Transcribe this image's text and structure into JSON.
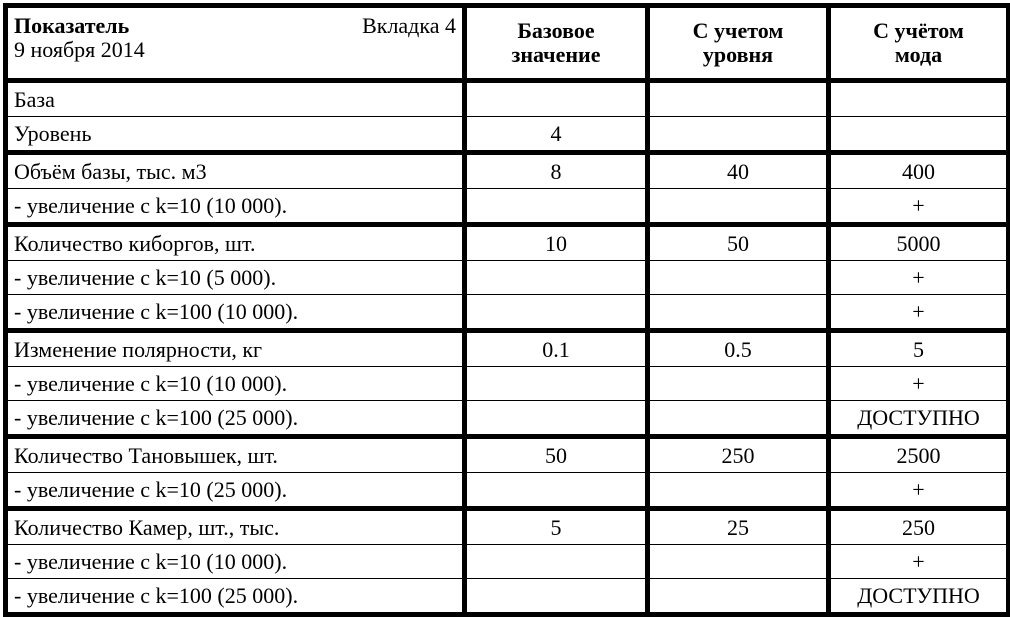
{
  "header": {
    "indicator": "Показатель",
    "tab": "Вкладка 4",
    "date": "9 ноября 2014",
    "col_base": "Базовое значение",
    "col_level": "С учетом уровня",
    "col_mod": "С учётом мода"
  },
  "groups": [
    {
      "rows": [
        {
          "label": "База",
          "base": "",
          "level": "",
          "mod": ""
        },
        {
          "label": "Уровень",
          "base": "4",
          "level": "",
          "mod": ""
        }
      ]
    },
    {
      "rows": [
        {
          "label": "Объём базы, тыс. м3",
          "base": "8",
          "level": "40",
          "mod": "400"
        },
        {
          "label": "- увеличение с k=10 (10 000).",
          "base": "",
          "level": "",
          "mod": "+"
        }
      ]
    },
    {
      "rows": [
        {
          "label": "Количество киборгов, шт.",
          "base": "10",
          "level": "50",
          "mod": "5000"
        },
        {
          "label": "- увеличение с k=10 (5 000).",
          "base": "",
          "level": "",
          "mod": "+"
        },
        {
          "label": "- увеличение с k=100 (10 000).",
          "base": "",
          "level": "",
          "mod": "+"
        }
      ]
    },
    {
      "rows": [
        {
          "label": "Изменение полярности, кг",
          "base": "0.1",
          "level": "0.5",
          "mod": "5"
        },
        {
          "label": "- увеличение с k=10 (10 000).",
          "base": "",
          "level": "",
          "mod": "+"
        },
        {
          "label": "- увеличение с k=100 (25 000).",
          "base": "",
          "level": "",
          "mod": "ДОСТУПНО"
        }
      ]
    },
    {
      "rows": [
        {
          "label": "Количество Тановышек, шт.",
          "base": "50",
          "level": "250",
          "mod": "2500"
        },
        {
          "label": "- увеличение с k=10 (25 000).",
          "base": "",
          "level": "",
          "mod": "+"
        }
      ]
    },
    {
      "rows": [
        {
          "label": "Количество Камер, шт., тыс.",
          "base": "5",
          "level": "25",
          "mod": "250"
        },
        {
          "label": "- увеличение с k=10 (10 000).",
          "base": "",
          "level": "",
          "mod": "+"
        },
        {
          "label": "- увеличение с k=100 (25 000).",
          "base": "",
          "level": "",
          "mod": "ДОСТУПНО"
        }
      ]
    }
  ]
}
